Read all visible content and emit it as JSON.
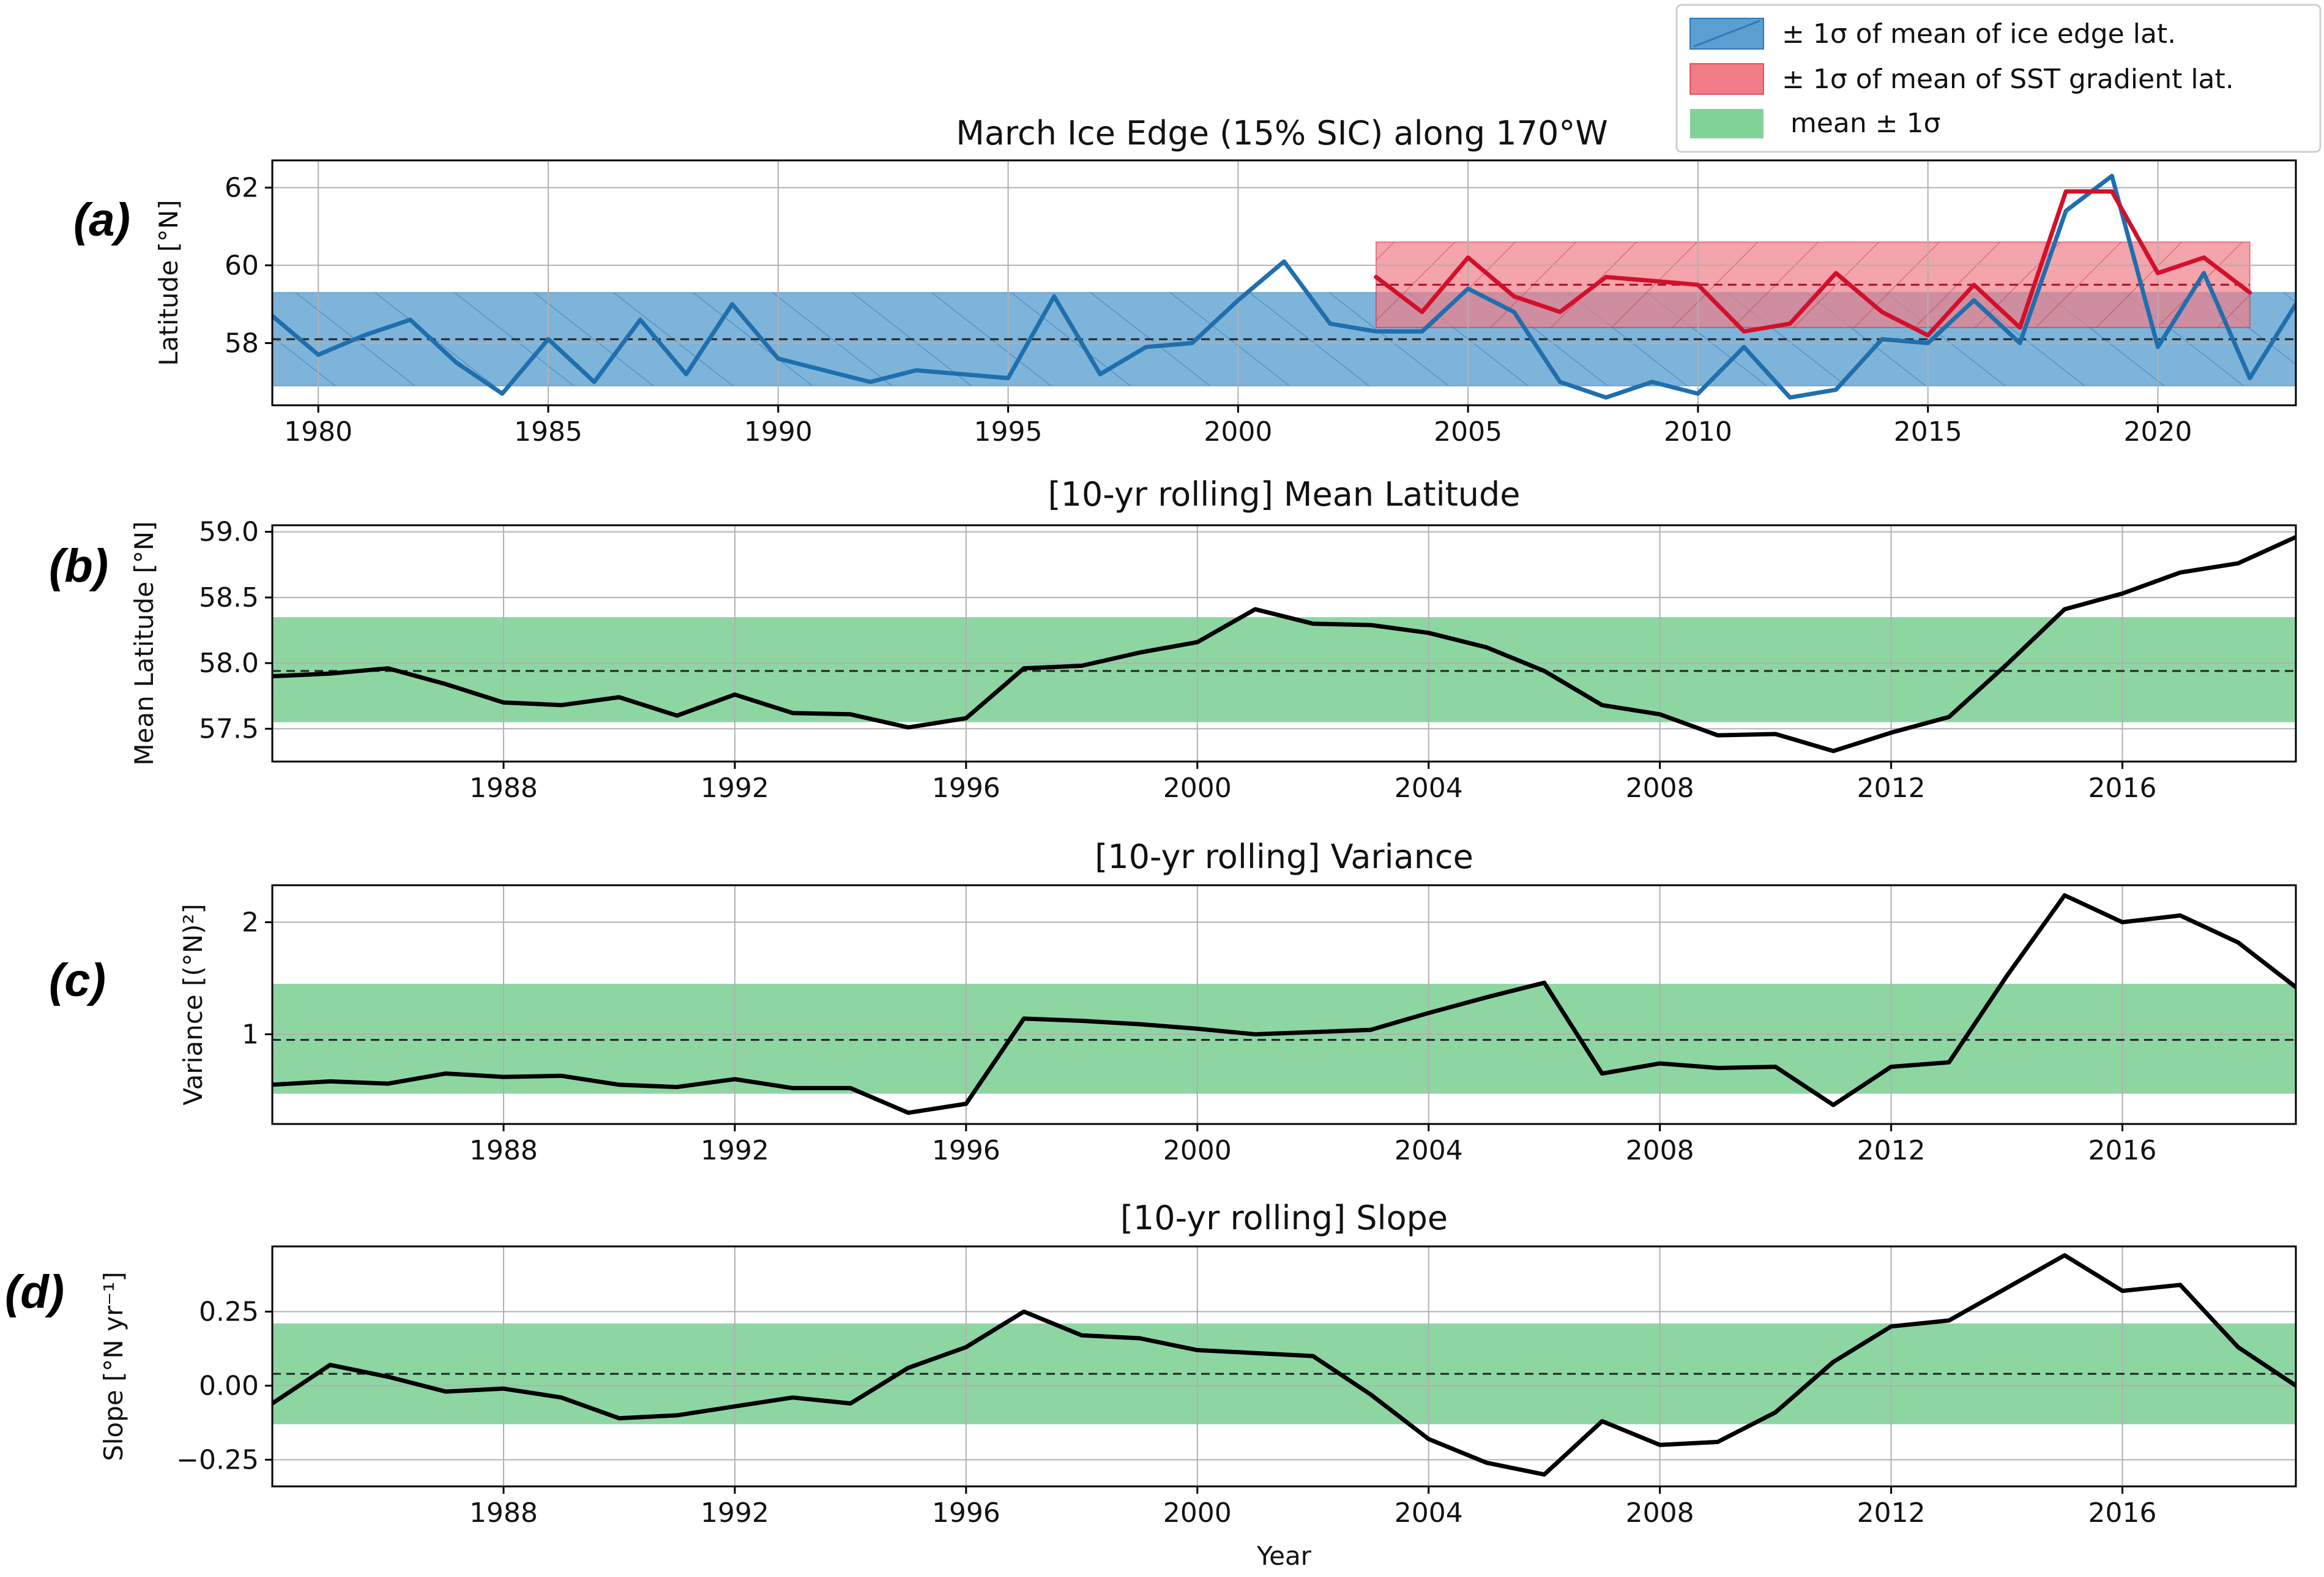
{
  "colors": {
    "blue": "#1f6fae",
    "blue_band": "#5b9fd0",
    "red": "#d3102a",
    "red_band": "#f07d88",
    "green_band": "#4cbf6e",
    "black": "#000000",
    "grid": "#b0b0b0"
  },
  "legend": {
    "blue_label": "± 1σ of mean of ice edge lat.",
    "red_label": "± 1σ of mean of SST gradient lat.",
    "green_label": "mean ± 1σ"
  },
  "chart_data": [
    {
      "id": "a",
      "panel_label": "(a)",
      "type": "line",
      "title": "March Ice Edge (15% SIC) along 170°W",
      "xlabel": "",
      "ylabel": "Latitude [°N]",
      "xlim": [
        1979,
        2023
      ],
      "ylim": [
        56.4,
        62.7
      ],
      "xticks": [
        1980,
        1985,
        1990,
        1995,
        2000,
        2005,
        2010,
        2015,
        2020
      ],
      "yticks": [
        58,
        60,
        62
      ],
      "xtick_labels": [
        "1980",
        "1985",
        "1990",
        "1995",
        "2000",
        "2005",
        "2010",
        "2015",
        "2020"
      ],
      "ytick_labels": [
        "58",
        "60",
        "62"
      ],
      "series": [
        {
          "name": "Ice edge latitude",
          "color": "blue",
          "x": [
            1979,
            1980,
            1981,
            1982,
            1983,
            1984,
            1985,
            1986,
            1987,
            1988,
            1989,
            1990,
            1991,
            1992,
            1993,
            1994,
            1995,
            1996,
            1997,
            1998,
            1999,
            2000,
            2001,
            2002,
            2003,
            2004,
            2005,
            2006,
            2007,
            2008,
            2009,
            2010,
            2011,
            2012,
            2013,
            2014,
            2015,
            2016,
            2017,
            2018,
            2019,
            2020,
            2021,
            2022,
            2023
          ],
          "y": [
            58.7,
            57.7,
            58.2,
            58.6,
            57.5,
            56.7,
            58.1,
            57.0,
            58.6,
            57.2,
            59.0,
            57.6,
            57.3,
            57.0,
            57.3,
            57.2,
            57.1,
            59.2,
            57.2,
            57.9,
            58.0,
            59.1,
            60.1,
            58.5,
            58.3,
            58.3,
            59.4,
            58.8,
            57.0,
            56.6,
            57.0,
            56.7,
            57.9,
            56.6,
            56.8,
            58.1,
            58.0,
            59.1,
            58.0,
            61.4,
            62.3,
            57.9,
            59.8,
            57.1,
            59.0
          ]
        },
        {
          "name": "SST gradient latitude",
          "color": "red",
          "x": [
            2003,
            2004,
            2005,
            2006,
            2007,
            2008,
            2009,
            2010,
            2011,
            2012,
            2013,
            2014,
            2015,
            2016,
            2017,
            2018,
            2019,
            2020,
            2021,
            2022
          ],
          "y": [
            59.7,
            58.8,
            60.2,
            59.2,
            58.8,
            59.7,
            59.6,
            59.5,
            58.3,
            58.5,
            59.8,
            58.8,
            58.2,
            59.5,
            58.4,
            61.9,
            61.9,
            59.8,
            60.2,
            59.3
          ]
        }
      ],
      "bands": [
        {
          "name": "ice edge ±1σ",
          "color": "blue",
          "x": [
            1979,
            2023
          ],
          "lower": 56.9,
          "upper": 59.3,
          "mean": 58.1
        },
        {
          "name": "SST gradient ±1σ",
          "color": "red",
          "x": [
            2003,
            2022
          ],
          "lower": 58.4,
          "upper": 60.6,
          "mean": 59.5
        }
      ]
    },
    {
      "id": "b",
      "panel_label": "(b)",
      "type": "line",
      "title": "[10-yr rolling] Mean Latitude",
      "xlabel": "",
      "ylabel": "Mean Latitude [°N]",
      "xlim": [
        1984,
        2019
      ],
      "ylim": [
        57.25,
        59.05
      ],
      "xticks": [
        1988,
        1992,
        1996,
        2000,
        2004,
        2008,
        2012,
        2016
      ],
      "yticks": [
        57.5,
        58.0,
        58.5,
        59.0
      ],
      "xtick_labels": [
        "1988",
        "1992",
        "1996",
        "2000",
        "2004",
        "2008",
        "2012",
        "2016"
      ],
      "ytick_labels": [
        "57.5",
        "58.0",
        "58.5",
        "59.0"
      ],
      "series": [
        {
          "name": "10-yr rolling mean",
          "color": "black",
          "x": [
            1984,
            1985,
            1986,
            1987,
            1988,
            1989,
            1990,
            1991,
            1992,
            1993,
            1994,
            1995,
            1996,
            1997,
            1998,
            1999,
            2000,
            2001,
            2002,
            2003,
            2004,
            2005,
            2006,
            2007,
            2008,
            2009,
            2010,
            2011,
            2012,
            2013,
            2014,
            2015,
            2016,
            2017,
            2018,
            2019
          ],
          "y": [
            57.9,
            57.92,
            57.96,
            57.84,
            57.7,
            57.68,
            57.74,
            57.6,
            57.76,
            57.62,
            57.61,
            57.51,
            57.58,
            57.96,
            57.98,
            58.08,
            58.16,
            58.41,
            58.3,
            58.29,
            58.23,
            58.12,
            57.94,
            57.68,
            57.61,
            57.45,
            57.46,
            57.33,
            57.47,
            57.59,
            57.99,
            58.41,
            58.53,
            58.69,
            58.76,
            58.96
          ]
        }
      ],
      "bands": [
        {
          "name": "mean ± 1σ",
          "color": "green",
          "x": [
            1984,
            2019
          ],
          "lower": 57.55,
          "upper": 58.35,
          "mean": 57.94
        }
      ]
    },
    {
      "id": "c",
      "panel_label": "(c)",
      "type": "line",
      "title": "[10-yr rolling] Variance",
      "xlabel": "",
      "ylabel": "Variance [(°N)²]",
      "xlim": [
        1984,
        2019
      ],
      "ylim": [
        0.2,
        2.33
      ],
      "xticks": [
        1988,
        1992,
        1996,
        2000,
        2004,
        2008,
        2012,
        2016
      ],
      "yticks": [
        1,
        2
      ],
      "xtick_labels": [
        "1988",
        "1992",
        "1996",
        "2000",
        "2004",
        "2008",
        "2012",
        "2016"
      ],
      "ytick_labels": [
        "1",
        "2"
      ],
      "series": [
        {
          "name": "10-yr rolling variance",
          "color": "black",
          "x": [
            1984,
            1985,
            1986,
            1987,
            1988,
            1989,
            1990,
            1991,
            1992,
            1993,
            1994,
            1995,
            1996,
            1997,
            1998,
            1999,
            2000,
            2001,
            2002,
            2003,
            2004,
            2005,
            2006,
            2007,
            2008,
            2009,
            2010,
            2011,
            2012,
            2013,
            2014,
            2015,
            2016,
            2017,
            2018,
            2019
          ],
          "y": [
            0.55,
            0.58,
            0.56,
            0.65,
            0.62,
            0.63,
            0.55,
            0.53,
            0.6,
            0.52,
            0.52,
            0.3,
            0.38,
            1.14,
            1.12,
            1.09,
            1.05,
            1.0,
            1.02,
            1.04,
            1.19,
            1.33,
            1.46,
            0.65,
            0.74,
            0.7,
            0.71,
            0.37,
            0.71,
            0.75,
            1.52,
            2.24,
            2.0,
            2.06,
            1.82,
            1.42
          ]
        }
      ],
      "bands": [
        {
          "name": "mean ± 1σ",
          "color": "green",
          "x": [
            1984,
            2019
          ],
          "lower": 0.47,
          "upper": 1.45,
          "mean": 0.95
        }
      ]
    },
    {
      "id": "d",
      "panel_label": "(d)",
      "type": "line",
      "title": "[10-yr rolling] Slope",
      "xlabel": "Year",
      "ylabel": "Slope [°N yr⁻¹]",
      "xlim": [
        1984,
        2019
      ],
      "ylim": [
        -0.34,
        0.47
      ],
      "xticks": [
        1988,
        1992,
        1996,
        2000,
        2004,
        2008,
        2012,
        2016
      ],
      "yticks": [
        -0.25,
        0.0,
        0.25
      ],
      "xtick_labels": [
        "1988",
        "1992",
        "1996",
        "2000",
        "2004",
        "2008",
        "2012",
        "2016"
      ],
      "ytick_labels": [
        "−0.25",
        "0.00",
        "0.25"
      ],
      "series": [
        {
          "name": "10-yr rolling slope",
          "color": "black",
          "x": [
            1984,
            1985,
            1986,
            1987,
            1988,
            1989,
            1990,
            1991,
            1992,
            1993,
            1994,
            1995,
            1996,
            1997,
            1998,
            1999,
            2000,
            2001,
            2002,
            2003,
            2004,
            2005,
            2006,
            2007,
            2008,
            2009,
            2010,
            2011,
            2012,
            2013,
            2014,
            2015,
            2016,
            2017,
            2018,
            2019
          ],
          "y": [
            -0.06,
            0.07,
            0.03,
            -0.02,
            -0.01,
            -0.04,
            -0.11,
            -0.1,
            -0.07,
            -0.04,
            -0.06,
            0.06,
            0.13,
            0.25,
            0.17,
            0.16,
            0.12,
            0.11,
            0.1,
            -0.03,
            -0.18,
            -0.26,
            -0.3,
            -0.12,
            -0.2,
            -0.19,
            -0.09,
            0.08,
            0.2,
            0.22,
            0.33,
            0.44,
            0.32,
            0.34,
            0.13,
            0.0
          ]
        }
      ],
      "bands": [
        {
          "name": "mean ± 1σ",
          "color": "green",
          "x": [
            1984,
            2019
          ],
          "lower": -0.13,
          "upper": 0.21,
          "mean": 0.04
        }
      ]
    }
  ]
}
